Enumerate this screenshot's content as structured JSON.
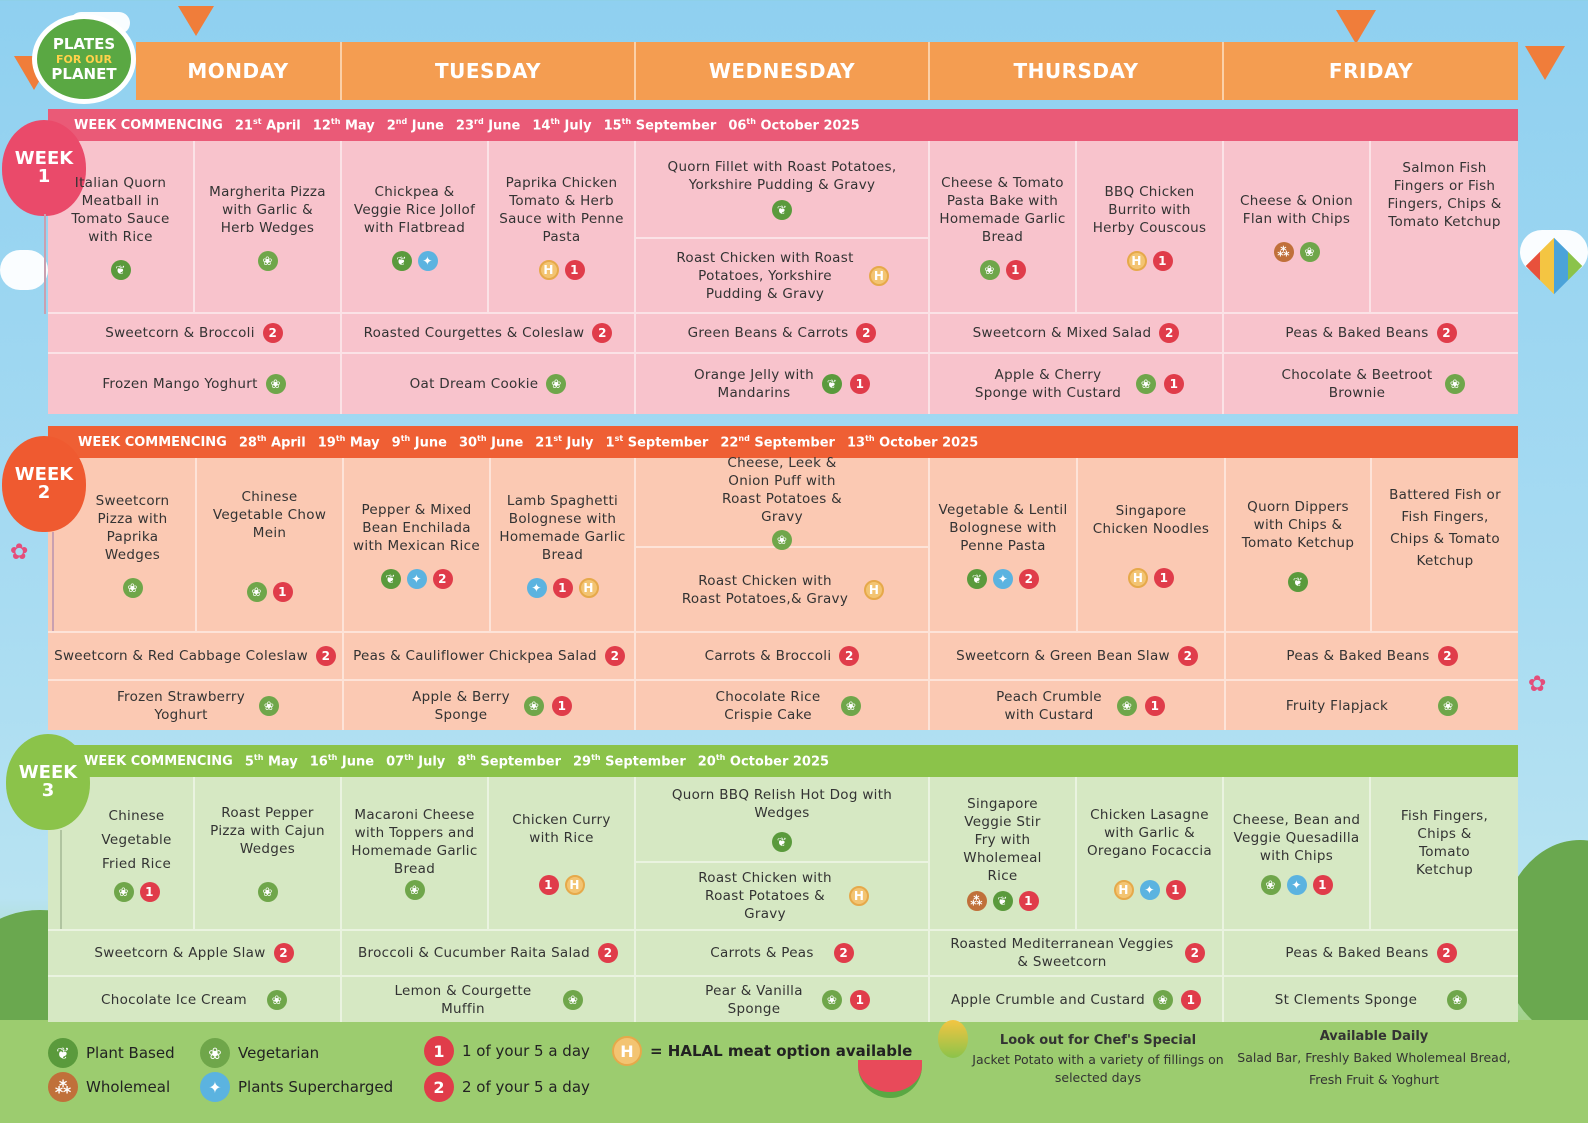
{
  "logo": {
    "line1": "PLATES",
    "line2": "FOR OUR",
    "line3": "PLANET"
  },
  "days": [
    "MONDAY",
    "TUESDAY",
    "WEDNESDAY",
    "THURSDAY",
    "FRIDAY"
  ],
  "colors": {
    "week1_bar": "#ea5a77",
    "week1_cell": "#f8c3cc",
    "week2_bar": "#ef5f34",
    "week2_cell": "#fbc9b3",
    "week3_bar": "#8bc34a",
    "week3_cell": "#d6e8c3",
    "day_header": "#f49d51"
  },
  "week1": {
    "balloon": "WEEK 1",
    "label": "WEEK COMMENCING",
    "dates": [
      {
        "d": "21",
        "s": "st",
        "m": "April"
      },
      {
        "d": "12",
        "s": "th",
        "m": "May"
      },
      {
        "d": "2",
        "s": "nd",
        "m": "June"
      },
      {
        "d": "23",
        "s": "rd",
        "m": "June"
      },
      {
        "d": "14",
        "s": "th",
        "m": "July"
      },
      {
        "d": "15",
        "s": "th",
        "m": "September"
      },
      {
        "d": "06",
        "s": "th",
        "m": "October 2025"
      }
    ],
    "mains": [
      "Italian Quorn Meatball in Tomato Sauce with Rice",
      "Margherita Pizza with Garlic & Herb Wedges",
      "Chickpea & Veggie Rice Jollof with Flatbread",
      "Paprika Chicken Tomato & Herb Sauce with Penne Pasta",
      "Quorn Fillet with Roast Potatoes, Yorkshire Pudding & Gravy",
      "Roast Chicken with Roast Potatoes, Yorkshire Pudding & Gravy",
      "Cheese & Tomato Pasta Bake with Homemade Garlic Bread",
      "BBQ Chicken Burrito with Herby Couscous",
      "Cheese & Onion Flan with Chips",
      "Salmon Fish Fingers or Fish Fingers, Chips & Tomato Ketchup"
    ],
    "sides": [
      "Sweetcorn & Broccoli",
      "Roasted Courgettes & Coleslaw",
      "Green Beans & Carrots",
      "Sweetcorn & Mixed Salad",
      "Peas & Baked Beans"
    ],
    "desserts": [
      "Frozen Mango Yoghurt",
      "Oat Dream Cookie",
      "Orange Jelly with Mandarins",
      "Apple & Cherry Sponge with Custard",
      "Chocolate & Beetroot Brownie"
    ]
  },
  "week2": {
    "balloon": "WEEK 2",
    "label": "WEEK COMMENCING",
    "dates": [
      {
        "d": "28",
        "s": "th",
        "m": "April"
      },
      {
        "d": "19",
        "s": "th",
        "m": "May"
      },
      {
        "d": "9",
        "s": "th",
        "m": "June"
      },
      {
        "d": "30",
        "s": "th",
        "m": "June"
      },
      {
        "d": "21",
        "s": "st",
        "m": "July"
      },
      {
        "d": "1",
        "s": "st",
        "m": "September"
      },
      {
        "d": "22",
        "s": "nd",
        "m": "September"
      },
      {
        "d": "13",
        "s": "th",
        "m": "October 2025"
      }
    ],
    "mains": [
      "Sweetcorn Pizza with Paprika Wedges",
      "Chinese Vegetable Chow Mein",
      "Pepper & Mixed Bean Enchilada with Mexican Rice",
      "Lamb Spaghetti Bolognese with Homemade Garlic Bread",
      "Cheese, Leek & Onion Puff with Roast Potatoes & Gravy",
      "Roast Chicken with Roast Potatoes,& Gravy",
      "Vegetable & Lentil Bolognese with Penne Pasta",
      "Singapore Chicken Noodles",
      "Quorn Dippers with Chips & Tomato Ketchup",
      "Battered Fish or Fish Fingers, Chips & Tomato Ketchup"
    ],
    "sides": [
      "Sweetcorn & Red Cabbage Coleslaw",
      "Peas & Cauliflower Chickpea Salad",
      "Carrots & Broccoli",
      "Sweetcorn & Green Bean Slaw",
      "Peas & Baked Beans"
    ],
    "desserts": [
      "Frozen Strawberry Yoghurt",
      "Apple & Berry Sponge",
      "Chocolate Rice Crispie Cake",
      "Peach Crumble with Custard",
      "Fruity Flapjack"
    ]
  },
  "week3": {
    "balloon": "WEEK 3",
    "label": "WEEK COMMENCING",
    "dates": [
      {
        "d": "5",
        "s": "th",
        "m": "May"
      },
      {
        "d": "16",
        "s": "th",
        "m": "June"
      },
      {
        "d": "07",
        "s": "th",
        "m": "July"
      },
      {
        "d": "8",
        "s": "th",
        "m": "September"
      },
      {
        "d": "29",
        "s": "th",
        "m": "September"
      },
      {
        "d": "20",
        "s": "th",
        "m": "October 2025"
      }
    ],
    "mains": [
      "Chinese Vegetable Fried Rice",
      "Roast Pepper Pizza with Cajun Wedges",
      "Macaroni Cheese with Toppers and Homemade Garlic Bread",
      "Chicken Curry with Rice",
      "Quorn BBQ Relish Hot Dog with Wedges",
      "Roast Chicken with Roast Potatoes & Gravy",
      "Singapore Veggie Stir Fry with Wholemeal Rice",
      "Chicken Lasagne with Garlic & Oregano Focaccia",
      "Cheese, Bean and Veggie Quesadilla with Chips",
      "Fish Fingers, Chips & Tomato Ketchup"
    ],
    "sides": [
      "Sweetcorn & Apple Slaw",
      "Broccoli & Cucumber Raita Salad",
      "Carrots & Peas",
      "Roasted Mediterranean Veggies & Sweetcorn",
      "Peas & Baked Beans"
    ],
    "desserts": [
      "Chocolate Ice Cream",
      "Lemon & Courgette Muffin",
      "Pear & Vanilla Sponge",
      "Apple Crumble and Custard",
      "St Clements Sponge"
    ]
  },
  "legend": {
    "plant": "Plant Based",
    "vegetarian": "Vegetarian",
    "wholemeal": "Wholemeal",
    "supercharged": "Plants Supercharged",
    "one": "1 of your 5 a day",
    "two": "2 of your 5 a day",
    "halal": "= HALAL meat option available"
  },
  "icon_glyphs": {
    "one": "1",
    "two": "2",
    "halal": "H"
  },
  "chef": {
    "title": "Look out for Chef's Special",
    "text": "Jacket Potato with a variety of fillings on selected days"
  },
  "daily": {
    "title": "Available Daily",
    "text": "Salad Bar, Freshly Baked Wholemeal Bread, Fresh Fruit & Yoghurt"
  }
}
